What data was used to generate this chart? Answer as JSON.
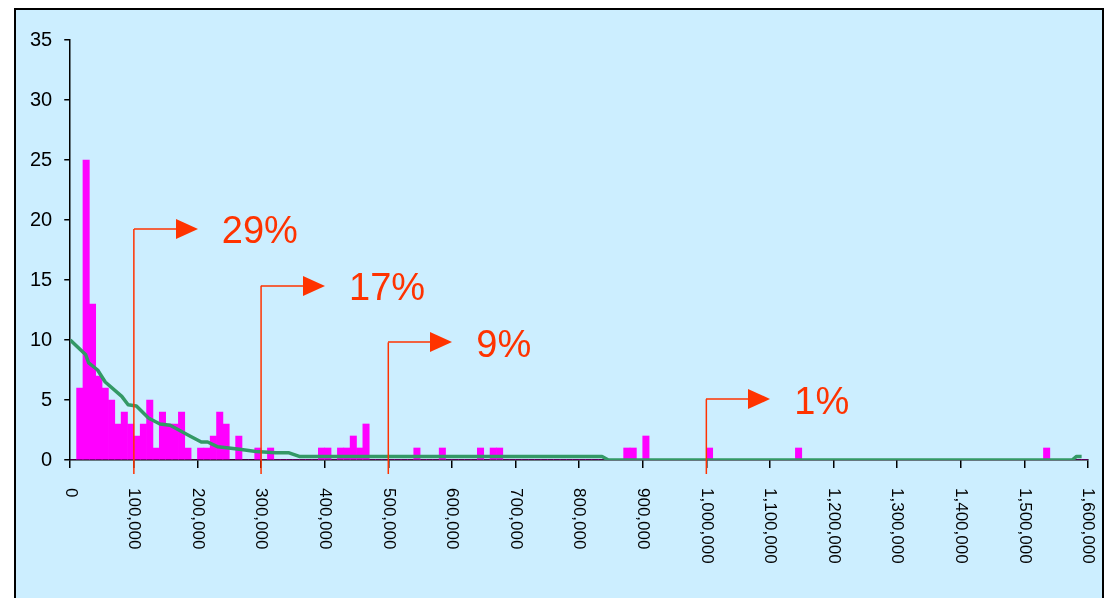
{
  "chart_data": {
    "type": "histogram",
    "bins": [
      0,
      10000,
      20000,
      30000,
      40000,
      50000,
      60000,
      70000,
      80000,
      90000,
      100000,
      110000,
      120000,
      130000,
      140000,
      150000,
      160000,
      170000,
      180000,
      190000,
      200000,
      210000,
      220000,
      230000,
      240000,
      250000,
      260000,
      270000,
      280000,
      290000,
      300000,
      310000,
      320000,
      330000,
      340000,
      350000,
      360000,
      370000,
      380000,
      390000,
      400000,
      410000,
      420000,
      430000,
      440000,
      450000,
      460000,
      470000,
      480000,
      490000,
      500000,
      510000,
      520000,
      530000,
      540000,
      550000,
      560000,
      570000,
      580000,
      590000,
      600000,
      610000,
      620000,
      630000,
      640000,
      650000,
      660000,
      670000,
      680000,
      690000,
      700000,
      710000,
      720000,
      730000,
      740000,
      750000,
      760000,
      770000,
      780000,
      790000,
      800000,
      810000,
      820000,
      830000,
      840000,
      850000,
      860000,
      870000,
      880000,
      890000,
      900000,
      910000,
      920000,
      930000,
      940000,
      950000,
      960000,
      970000,
      980000,
      990000,
      1000000,
      1010000,
      1020000,
      1030000,
      1040000,
      1050000,
      1060000,
      1070000,
      1080000,
      1090000,
      1100000,
      1110000,
      1120000,
      1130000,
      1140000,
      1150000,
      1160000,
      1170000,
      1180000,
      1190000,
      1200000,
      1210000,
      1220000,
      1230000,
      1240000,
      1250000,
      1260000,
      1270000,
      1280000,
      1290000,
      1300000,
      1310000,
      1320000,
      1330000,
      1340000,
      1350000,
      1360000,
      1370000,
      1380000,
      1390000,
      1400000,
      1410000,
      1420000,
      1430000,
      1440000,
      1450000,
      1460000,
      1470000,
      1480000,
      1490000,
      1500000,
      1510000,
      1520000,
      1530000,
      1540000,
      1550000,
      1560000,
      1570000,
      1580000,
      1590000,
      1600000
    ],
    "series": [
      {
        "color": "#ff00ff",
        "values": [
          0,
          6,
          25,
          13,
          7,
          6,
          5,
          3,
          4,
          3,
          2,
          3,
          5,
          1,
          4,
          3,
          3,
          4,
          1,
          0,
          1,
          1,
          2,
          4,
          3,
          0,
          2,
          0,
          0,
          1,
          0,
          1,
          0,
          0,
          0,
          0,
          0,
          0,
          0,
          1,
          1,
          0,
          1,
          1,
          2,
          1,
          3,
          0,
          0,
          0,
          0,
          0,
          0,
          0,
          1,
          0,
          0,
          0,
          1,
          0,
          0,
          0,
          0,
          0,
          1,
          0,
          1,
          1,
          0,
          0,
          0,
          0,
          0,
          0,
          0,
          0,
          0,
          0,
          0,
          0,
          0,
          0,
          0,
          0,
          0,
          0,
          0,
          1,
          1,
          0,
          2,
          0,
          0,
          0,
          0,
          0,
          0,
          0,
          0,
          0,
          1,
          0,
          0,
          0,
          0,
          0,
          0,
          0,
          0,
          0,
          0,
          0,
          0,
          0,
          1,
          0,
          0,
          0,
          0,
          0,
          0,
          0,
          0,
          0,
          0,
          0,
          0,
          0,
          0,
          0,
          0,
          0,
          0,
          0,
          0,
          0,
          0,
          0,
          0,
          0,
          0,
          0,
          0,
          0,
          0,
          0,
          0,
          0,
          0,
          0,
          0,
          0,
          0,
          1,
          0,
          0,
          0,
          0,
          0,
          0
        ]
      },
      {
        "type": "line",
        "color": "#339966",
        "x": [
          0,
          24000,
          29000,
          43000,
          55000,
          81000,
          91000,
          104000,
          123000,
          141000,
          157000,
          188000,
          206000,
          216000,
          232000,
          266000,
          292000,
          323000,
          344000,
          360000,
          836000,
          846000,
          1575000,
          1582000,
          1590000
        ],
        "values": [
          10,
          8.8,
          8.1,
          7.5,
          6.5,
          5.3,
          4.6,
          4.5,
          3.5,
          3,
          2.9,
          2,
          1.5,
          1.5,
          1.1,
          0.9,
          0.7,
          0.6,
          0.6,
          0.3,
          0.3,
          0,
          0,
          0.3,
          0.3
        ]
      }
    ],
    "xlim": [
      0,
      1600000
    ],
    "xticks": [
      0,
      {
        "value": 100000,
        "label": "100,000"
      },
      {
        "value": 200000,
        "label": "200,000"
      },
      {
        "value": 300000,
        "label": "300,000"
      },
      {
        "value": 400000,
        "label": "400,000"
      },
      {
        "value": 500000,
        "label": "500,000"
      },
      {
        "value": 600000,
        "label": "600,000"
      },
      {
        "value": 700000,
        "label": "700,000"
      },
      {
        "value": 800000,
        "label": "800,000"
      },
      {
        "value": 900000,
        "label": "900,000"
      },
      {
        "value": 1000000,
        "label": "1,000,000"
      },
      {
        "value": 1100000,
        "label": "1,100,000"
      },
      {
        "value": 1200000,
        "label": "1,200,000"
      },
      {
        "value": 1300000,
        "label": "1,300,000"
      },
      {
        "value": 1400000,
        "label": "1,400,000"
      },
      {
        "value": 1500000,
        "label": "1,500,000"
      },
      {
        "value": 1600000,
        "label": "1,600,000"
      }
    ],
    "ylim": [
      0,
      35
    ],
    "yticks": [
      0,
      5,
      10,
      15,
      20,
      25,
      30,
      35
    ],
    "ref_lines": [
      {
        "axis": "x",
        "value": 100000,
        "color": "#ff3300"
      },
      {
        "axis": "x",
        "value": 300000,
        "color": "#ff3300"
      },
      {
        "axis": "x",
        "value": 500000,
        "color": "#ff3300"
      },
      {
        "axis": "x",
        "value": 1000000,
        "color": "#ff3300"
      }
    ],
    "annotations": [
      {
        "text": "29%",
        "x": 100000
      },
      {
        "text": "17%",
        "x": 300000
      },
      {
        "text": "9%",
        "x": 500000
      },
      {
        "text": "1%",
        "x": 1000000
      }
    ],
    "grid": false,
    "legend": false
  }
}
